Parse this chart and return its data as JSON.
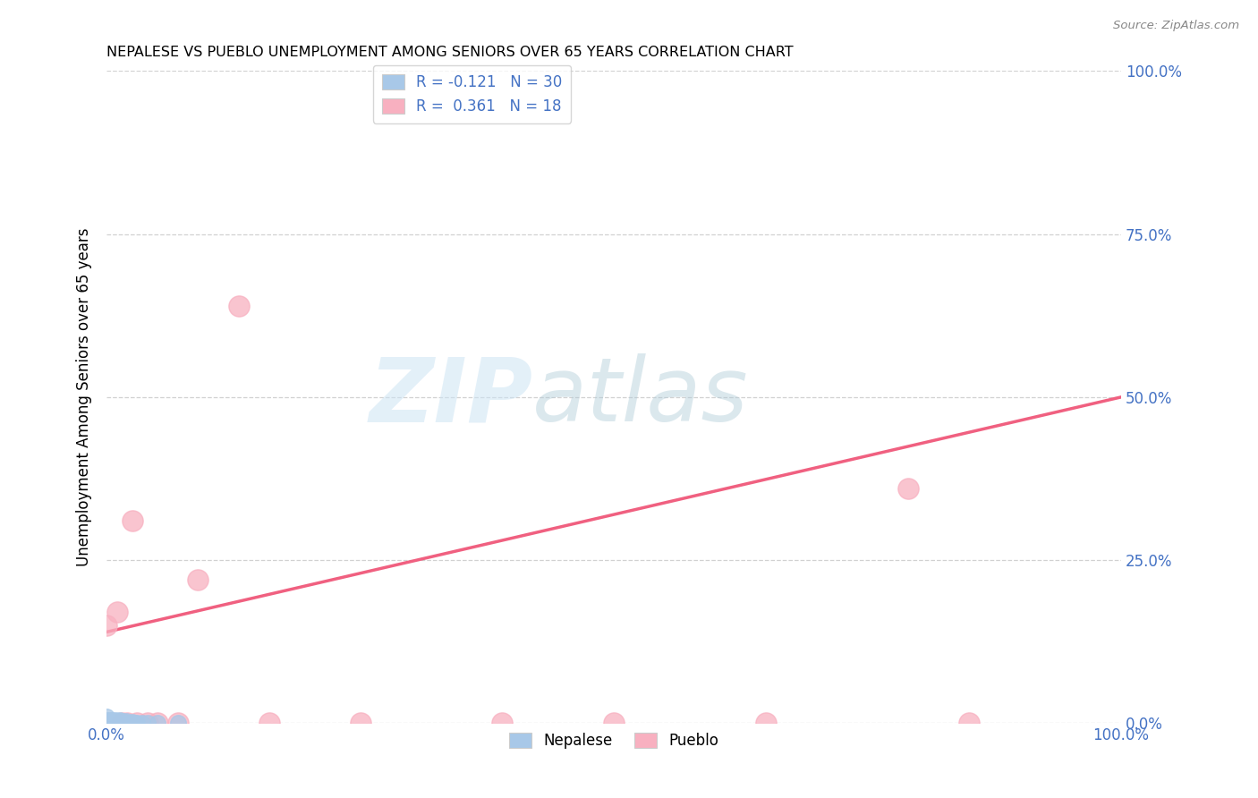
{
  "title": "NEPALESE VS PUEBLO UNEMPLOYMENT AMONG SENIORS OVER 65 YEARS CORRELATION CHART",
  "source": "Source: ZipAtlas.com",
  "ylabel": "Unemployment Among Seniors over 65 years",
  "xlim": [
    0.0,
    1.0
  ],
  "ylim": [
    0.0,
    1.0
  ],
  "nepalese_R": -0.121,
  "nepalese_N": 30,
  "pueblo_R": 0.361,
  "pueblo_N": 18,
  "nepalese_color": "#a8c8e8",
  "pueblo_color": "#f8b0c0",
  "nepalese_line_color": "#88b8e0",
  "pueblo_line_color": "#f06080",
  "nepalese_x": [
    0.0,
    0.0,
    0.0,
    0.002,
    0.003,
    0.004,
    0.005,
    0.006,
    0.007,
    0.008,
    0.009,
    0.01,
    0.011,
    0.012,
    0.013,
    0.014,
    0.015,
    0.016,
    0.017,
    0.018,
    0.019,
    0.02,
    0.022,
    0.025,
    0.028,
    0.03,
    0.035,
    0.04,
    0.05,
    0.07
  ],
  "nepalese_y": [
    0.0,
    0.005,
    0.01,
    0.0,
    0.005,
    0.0,
    0.005,
    0.0,
    0.003,
    0.0,
    0.005,
    0.0,
    0.003,
    0.0,
    0.005,
    0.0,
    0.003,
    0.0,
    0.002,
    0.0,
    0.003,
    0.0,
    0.0,
    0.002,
    0.0,
    0.0,
    0.0,
    0.0,
    0.0,
    0.0
  ],
  "pueblo_x": [
    0.0,
    0.01,
    0.015,
    0.02,
    0.025,
    0.03,
    0.04,
    0.05,
    0.07,
    0.09,
    0.13,
    0.16,
    0.25,
    0.39,
    0.5,
    0.65,
    0.79,
    0.85
  ],
  "pueblo_y": [
    0.15,
    0.17,
    0.0,
    0.0,
    0.31,
    0.0,
    0.0,
    0.0,
    0.0,
    0.22,
    0.64,
    0.0,
    0.0,
    0.0,
    0.0,
    0.0,
    0.36,
    0.0
  ],
  "pueblo_line_x0": 0.0,
  "pueblo_line_y0": 0.14,
  "pueblo_line_x1": 1.0,
  "pueblo_line_y1": 0.5
}
